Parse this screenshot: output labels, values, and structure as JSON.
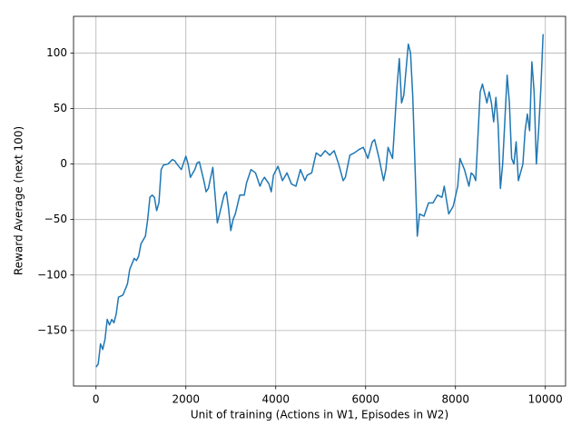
{
  "chart_data": {
    "type": "line",
    "xlabel": "Unit of training (Actions in W1, Episodes in W2)",
    "ylabel": "Reward Average (next 100)",
    "x": [
      0,
      50,
      100,
      150,
      200,
      250,
      300,
      350,
      400,
      450,
      500,
      600,
      700,
      750,
      800,
      850,
      900,
      950,
      1000,
      1100,
      1150,
      1200,
      1250,
      1300,
      1350,
      1400,
      1450,
      1500,
      1600,
      1700,
      1750,
      1800,
      1900,
      2000,
      2050,
      2100,
      2200,
      2250,
      2300,
      2400,
      2450,
      2500,
      2600,
      2700,
      2750,
      2850,
      2900,
      2950,
      3000,
      3050,
      3100,
      3200,
      3300,
      3350,
      3450,
      3550,
      3650,
      3700,
      3750,
      3850,
      3900,
      3950,
      4050,
      4150,
      4250,
      4350,
      4450,
      4550,
      4650,
      4700,
      4800,
      4900,
      5000,
      5100,
      5200,
      5300,
      5400,
      5500,
      5550,
      5650,
      5750,
      5850,
      5950,
      6050,
      6150,
      6200,
      6300,
      6400,
      6450,
      6500,
      6600,
      6700,
      6750,
      6800,
      6850,
      6950,
      7000,
      7050,
      7150,
      7200,
      7300,
      7400,
      7500,
      7600,
      7700,
      7750,
      7850,
      7950,
      8050,
      8100,
      8200,
      8300,
      8350,
      8400,
      8450,
      8550,
      8600,
      8700,
      8750,
      8800,
      8850,
      8900,
      8950,
      9000,
      9050,
      9150,
      9200,
      9250,
      9300,
      9350,
      9400,
      9500,
      9550,
      9600,
      9650,
      9700,
      9750,
      9800,
      9850,
      9900,
      9950
    ],
    "values": [
      -183,
      -180,
      -162,
      -167,
      -158,
      -140,
      -145,
      -140,
      -143,
      -135,
      -120,
      -118,
      -108,
      -95,
      -90,
      -85,
      -87,
      -83,
      -72,
      -65,
      -50,
      -30,
      -28,
      -30,
      -42,
      -35,
      -5,
      -1,
      0,
      4,
      3,
      0,
      -5,
      7,
      0,
      -12,
      -5,
      1,
      2,
      -15,
      -25,
      -22,
      -3,
      -53,
      -45,
      -28,
      -25,
      -40,
      -60,
      -50,
      -45,
      -28,
      -28,
      -17,
      -5,
      -8,
      -20,
      -15,
      -12,
      -18,
      -25,
      -10,
      -2,
      -15,
      -8,
      -18,
      -20,
      -5,
      -15,
      -10,
      -8,
      10,
      7,
      12,
      8,
      12,
      0,
      -15,
      -12,
      8,
      10,
      13,
      15,
      5,
      20,
      22,
      5,
      -15,
      -5,
      15,
      5,
      70,
      95,
      55,
      62,
      108,
      100,
      60,
      -65,
      -45,
      -47,
      -35,
      -35,
      -28,
      -30,
      -20,
      -45,
      -38,
      -20,
      5,
      -5,
      -20,
      -8,
      -10,
      -15,
      65,
      72,
      55,
      65,
      55,
      38,
      60,
      35,
      -22,
      0,
      80,
      55,
      5,
      0,
      20,
      -15,
      0,
      30,
      45,
      30,
      92,
      65,
      0,
      30,
      68,
      117
    ],
    "color": "#1f77b4",
    "xlim": [
      -500,
      10450
    ],
    "ylim": [
      -200,
      133
    ],
    "xticks": [
      0,
      2000,
      4000,
      6000,
      8000,
      10000
    ],
    "yticks": [
      {
        "value": -150,
        "label": "−150"
      },
      {
        "value": -100,
        "label": "−100"
      },
      {
        "value": -50,
        "label": "−50"
      },
      0,
      50,
      100
    ],
    "grid": true
  }
}
